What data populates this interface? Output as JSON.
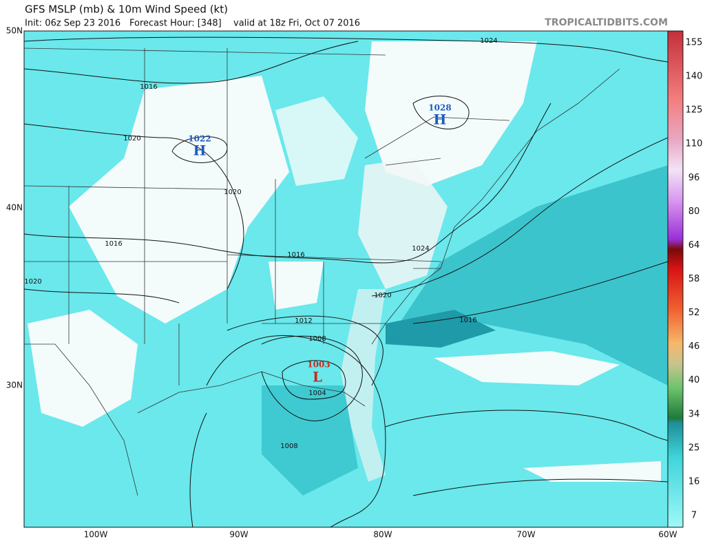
{
  "header": {
    "title": "GFS MSLP (mb) & 10m Wind Speed (kt)",
    "init": "Init: 06z Sep 23 2016",
    "forecast_hour": "Forecast Hour: [348]",
    "valid": "valid at 18z Fri, Oct 07 2016",
    "credit": "TROPICALTIDBITS.COM"
  },
  "map": {
    "lat_labels": [
      "50N",
      "40N",
      "30N"
    ],
    "lon_labels": [
      "100W",
      "90W",
      "80W",
      "70W",
      "60W"
    ],
    "pressure_centers": [
      {
        "symbol": "H",
        "value": 1022
      },
      {
        "symbol": "H",
        "value": 1028
      },
      {
        "symbol": "L",
        "value": 1003
      }
    ],
    "isobar_labels": [
      1024,
      1016,
      1020,
      1020,
      1016,
      1020,
      1016,
      1024,
      1020,
      1016,
      1012,
      1008,
      1004,
      1008
    ]
  },
  "colorbar": {
    "ticks": [
      155,
      140,
      125,
      110,
      96,
      80,
      64,
      58,
      52,
      46,
      40,
      34,
      25,
      16,
      7
    ]
  }
}
